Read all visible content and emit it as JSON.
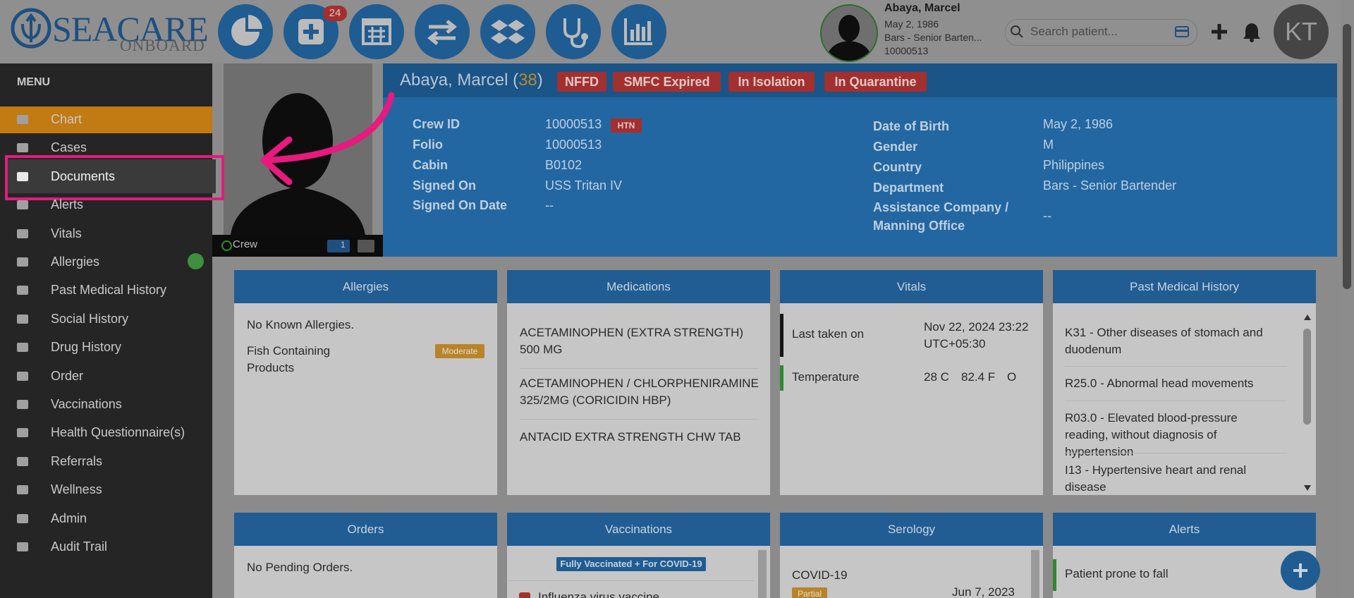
{
  "logo": {
    "brand": "SEACARE",
    "sub": "ONBOARD"
  },
  "toolbar": {
    "badge": "24"
  },
  "patient_card": {
    "name": "Abaya, Marcel",
    "dob": "May 2, 1986",
    "department": "Bars - Senior Barten...",
    "id": "10000513"
  },
  "search": {
    "placeholder": "Search patient..."
  },
  "user": {
    "initials": "KT"
  },
  "menu": {
    "title": "MENU",
    "items": [
      "Chart",
      "Cases",
      "Documents",
      "Alerts",
      "Vitals",
      "Allergies",
      "Past Medical History",
      "Social History",
      "Drug History",
      "Order",
      "Vaccinations",
      "Health Questionnaire(s)",
      "Referrals",
      "Wellness",
      "Admin",
      "Audit Trail"
    ]
  },
  "photo": {
    "status": "Crew",
    "count": "1"
  },
  "header": {
    "name": "Abaya, Marcel",
    "age_open": "(",
    "age": "38",
    "age_close": ")",
    "tags": [
      "NFFD",
      "SMFC Expired",
      "In Isolation",
      "In Quarantine"
    ]
  },
  "details": {
    "left": [
      {
        "label": "Crew ID",
        "value": "10000513",
        "tag": "HTN"
      },
      {
        "label": "Folio",
        "value": "10000513"
      },
      {
        "label": "Cabin",
        "value": "B0102"
      },
      {
        "label": "Signed On",
        "value": "USS Tritan IV"
      },
      {
        "label": "Signed On Date",
        "value": "--"
      }
    ],
    "right": [
      {
        "label": "Date of Birth",
        "value": "May 2, 1986"
      },
      {
        "label": "Gender",
        "value": "M"
      },
      {
        "label": "Country",
        "value": "Philippines"
      },
      {
        "label": "Department",
        "value": "Bars - Senior Bartender"
      },
      {
        "label": "Assistance Company / Manning Office",
        "value": "--"
      }
    ]
  },
  "cards": {
    "allergies": {
      "title": "Allergies",
      "none": "No Known Allergies.",
      "item": "Fish Containing Products",
      "severity": "Moderate"
    },
    "medications": {
      "title": "Medications",
      "items": [
        "ACETAMINOPHEN (EXTRA STRENGTH) 500 MG",
        "ACETAMINOPHEN / CHLORPHENIRAMINE 325/2MG (CORICIDIN HBP)",
        "ANTACID EXTRA STRENGTH CHW TAB"
      ]
    },
    "vitals": {
      "title": "Vitals",
      "last_label": "Last taken on",
      "last_value": "Nov 22, 2024 23:22 UTC+05:30",
      "temp_label": "Temperature",
      "temp_c": "28 C",
      "temp_f": "82.4 F",
      "temp_site": "O"
    },
    "history": {
      "title": "Past Medical History",
      "items": [
        "K31 - Other diseases of stomach and duodenum",
        "R25.0 - Abnormal head movements",
        "R03.0 - Elevated blood-pressure reading, without diagnosis of hypertension",
        "I13 - Hypertensive heart and renal disease"
      ]
    },
    "orders": {
      "title": "Orders",
      "none": "No Pending Orders."
    },
    "vaccinations": {
      "title": "Vaccinations",
      "badge": "Fully Vaccinated + For COVID-19",
      "item": "Influenza virus vaccine"
    },
    "serology": {
      "title": "Serology",
      "item": "COVID-19",
      "status": "Partial",
      "date": "Jun 7, 2023"
    },
    "alerts": {
      "title": "Alerts",
      "item": "Patient prone to fall"
    }
  }
}
